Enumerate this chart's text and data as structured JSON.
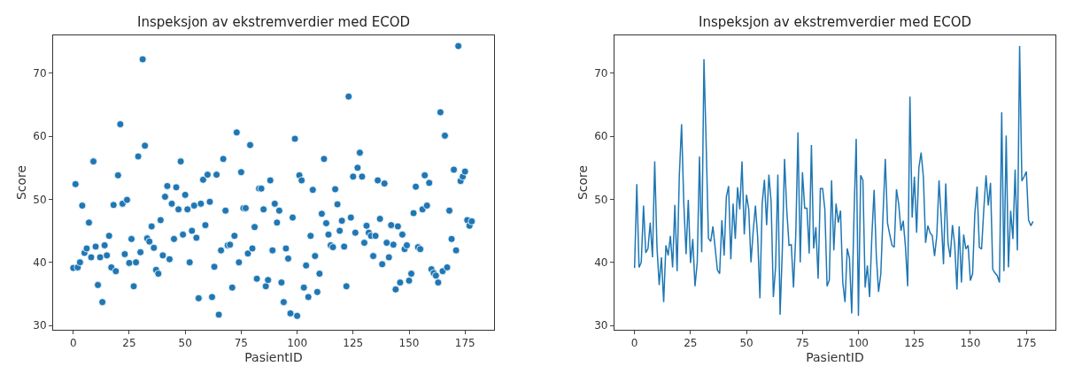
{
  "chart_data": [
    {
      "type": "scatter",
      "title": "Inspeksjon av ekstremverdier med ECOD",
      "xlabel": "PasientID",
      "ylabel": "Score",
      "marker": "circle",
      "xlim": [
        -9,
        188
      ],
      "ylim": [
        29.3,
        76
      ],
      "xticks": [
        0,
        25,
        50,
        75,
        100,
        125,
        150,
        175
      ],
      "yticks": [
        30,
        40,
        50,
        60,
        70
      ],
      "series": [
        {
          "color": "#1f77b4",
          "x": [
            0,
            1,
            2,
            3,
            4,
            5,
            6,
            7,
            8,
            9,
            10,
            11,
            12,
            13,
            14,
            15,
            16,
            17,
            18,
            19,
            20,
            21,
            22,
            23,
            24,
            25,
            26,
            27,
            28,
            29,
            30,
            31,
            32,
            33,
            34,
            35,
            36,
            37,
            38,
            39,
            40,
            41,
            42,
            43,
            44,
            45,
            46,
            47,
            48,
            49,
            50,
            51,
            52,
            53,
            54,
            55,
            56,
            57,
            58,
            59,
            60,
            61,
            62,
            63,
            64,
            65,
            66,
            67,
            68,
            69,
            70,
            71,
            72,
            73,
            74,
            75,
            76,
            77,
            78,
            79,
            80,
            81,
            82,
            83,
            84,
            85,
            86,
            87,
            88,
            89,
            90,
            91,
            92,
            93,
            94,
            95,
            96,
            97,
            98,
            99,
            100,
            101,
            102,
            103,
            104,
            105,
            106,
            107,
            108,
            109,
            110,
            111,
            112,
            113,
            114,
            115,
            116,
            117,
            118,
            119,
            120,
            121,
            122,
            123,
            124,
            125,
            126,
            127,
            128,
            129,
            130,
            131,
            132,
            133,
            134,
            135,
            136,
            137,
            138,
            139,
            140,
            141,
            142,
            143,
            144,
            145,
            146,
            147,
            148,
            149,
            150,
            151,
            152,
            153,
            154,
            155,
            156,
            157,
            158,
            159,
            160,
            161,
            162,
            163,
            164,
            165,
            166,
            167,
            168,
            169,
            170,
            171,
            172,
            173,
            174,
            175,
            176,
            177,
            178
          ],
          "values": [
            39.1,
            52.4,
            39.2,
            40.0,
            49.0,
            41.5,
            42.2,
            46.3,
            40.8,
            56.0,
            42.5,
            36.4,
            40.8,
            33.7,
            42.7,
            41.1,
            44.2,
            39.2,
            49.1,
            38.6,
            53.8,
            61.9,
            49.3,
            41.3,
            49.9,
            39.9,
            43.7,
            36.2,
            40.0,
            56.8,
            41.6,
            72.2,
            58.5,
            43.8,
            43.3,
            45.7,
            42.3,
            38.8,
            38.2,
            46.7,
            41.1,
            50.4,
            52.1,
            40.5,
            49.3,
            43.7,
            51.9,
            48.4,
            56.0,
            44.4,
            50.7,
            48.4,
            40.0,
            45.0,
            49.0,
            43.9,
            34.3,
            49.3,
            53.1,
            45.9,
            53.9,
            49.6,
            34.5,
            39.3,
            53.9,
            31.7,
            41.9,
            56.4,
            48.2,
            42.7,
            42.8,
            36.0,
            44.2,
            60.6,
            40.0,
            54.3,
            48.6,
            48.6,
            41.4,
            58.6,
            42.2,
            45.6,
            37.4,
            51.7,
            51.7,
            48.4,
            36.2,
            37.2,
            53.0,
            41.9,
            49.3,
            46.3,
            48.2,
            36.8,
            33.7,
            42.2,
            40.6,
            31.9,
            47.1,
            59.6,
            31.5,
            53.8,
            53.0,
            36.0,
            39.5,
            34.5,
            44.2,
            51.5,
            41.0,
            35.3,
            38.2,
            47.7,
            56.4,
            46.2,
            44.4,
            42.7,
            42.4,
            51.6,
            49.2,
            45.0,
            46.6,
            42.5,
            36.2,
            66.3,
            47.1,
            53.6,
            44.7,
            55.0,
            57.4,
            53.6,
            43.1,
            45.8,
            44.7,
            44.2,
            41.0,
            44.2,
            53.0,
            46.9,
            39.7,
            52.5,
            43.1,
            40.8,
            45.9,
            42.8,
            35.7,
            45.7,
            36.8,
            44.4,
            42.1,
            42.7,
            37.1,
            38.2,
            47.8,
            52.0,
            42.4,
            42.1,
            48.4,
            53.8,
            49.0,
            52.6,
            38.9,
            38.3,
            37.9,
            36.8,
            63.8,
            38.6,
            60.1,
            39.2,
            48.2,
            43.7,
            54.7,
            41.9,
            74.3,
            52.9,
            53.6,
            54.4,
            46.7,
            45.8,
            46.5
          ]
        }
      ]
    },
    {
      "type": "line",
      "title": "Inspeksjon av ekstremverdier med ECOD",
      "xlabel": "PasientID",
      "ylabel": "Score",
      "marker": "none",
      "line_style": "solid",
      "xlim": [
        -9,
        188
      ],
      "ylim": [
        29.3,
        76
      ],
      "xticks": [
        0,
        25,
        50,
        75,
        100,
        125,
        150,
        175
      ],
      "yticks": [
        30,
        40,
        50,
        60,
        70
      ],
      "series": [
        {
          "color": "#1f77b4",
          "x": [
            0,
            1,
            2,
            3,
            4,
            5,
            6,
            7,
            8,
            9,
            10,
            11,
            12,
            13,
            14,
            15,
            16,
            17,
            18,
            19,
            20,
            21,
            22,
            23,
            24,
            25,
            26,
            27,
            28,
            29,
            30,
            31,
            32,
            33,
            34,
            35,
            36,
            37,
            38,
            39,
            40,
            41,
            42,
            43,
            44,
            45,
            46,
            47,
            48,
            49,
            50,
            51,
            52,
            53,
            54,
            55,
            56,
            57,
            58,
            59,
            60,
            61,
            62,
            63,
            64,
            65,
            66,
            67,
            68,
            69,
            70,
            71,
            72,
            73,
            74,
            75,
            76,
            77,
            78,
            79,
            80,
            81,
            82,
            83,
            84,
            85,
            86,
            87,
            88,
            89,
            90,
            91,
            92,
            93,
            94,
            95,
            96,
            97,
            98,
            99,
            100,
            101,
            102,
            103,
            104,
            105,
            106,
            107,
            108,
            109,
            110,
            111,
            112,
            113,
            114,
            115,
            116,
            117,
            118,
            119,
            120,
            121,
            122,
            123,
            124,
            125,
            126,
            127,
            128,
            129,
            130,
            131,
            132,
            133,
            134,
            135,
            136,
            137,
            138,
            139,
            140,
            141,
            142,
            143,
            144,
            145,
            146,
            147,
            148,
            149,
            150,
            151,
            152,
            153,
            154,
            155,
            156,
            157,
            158,
            159,
            160,
            161,
            162,
            163,
            164,
            165,
            166,
            167,
            168,
            169,
            170,
            171,
            172,
            173,
            174,
            175,
            176,
            177,
            178
          ],
          "values": [
            39.1,
            52.4,
            39.2,
            40.0,
            49.0,
            41.5,
            42.2,
            46.3,
            40.8,
            56.0,
            42.5,
            36.4,
            40.8,
            33.7,
            42.7,
            41.1,
            44.2,
            39.2,
            49.1,
            38.6,
            53.8,
            61.9,
            49.3,
            41.3,
            49.9,
            39.9,
            43.7,
            36.2,
            40.0,
            56.8,
            41.6,
            72.2,
            58.5,
            43.8,
            43.3,
            45.7,
            42.3,
            38.8,
            38.2,
            46.7,
            41.1,
            50.4,
            52.1,
            40.5,
            49.3,
            43.7,
            51.9,
            48.4,
            56.0,
            44.4,
            50.7,
            48.4,
            40.0,
            45.0,
            49.0,
            43.9,
            34.3,
            49.3,
            53.1,
            45.9,
            53.9,
            49.6,
            34.5,
            39.3,
            53.9,
            31.7,
            41.9,
            56.4,
            48.2,
            42.7,
            42.8,
            36.0,
            44.2,
            60.6,
            40.0,
            54.3,
            48.6,
            48.6,
            41.4,
            58.6,
            42.2,
            45.6,
            37.4,
            51.7,
            51.7,
            48.4,
            36.2,
            37.2,
            53.0,
            41.9,
            49.3,
            46.3,
            48.2,
            36.8,
            33.7,
            42.2,
            40.6,
            31.9,
            47.1,
            59.6,
            31.5,
            53.8,
            53.0,
            36.0,
            39.5,
            34.5,
            44.2,
            51.5,
            41.0,
            35.3,
            38.2,
            47.7,
            56.4,
            46.2,
            44.4,
            42.7,
            42.4,
            51.6,
            49.2,
            45.0,
            46.6,
            42.5,
            36.2,
            66.3,
            47.1,
            53.6,
            44.7,
            55.0,
            57.4,
            53.6,
            43.1,
            45.8,
            44.7,
            44.2,
            41.0,
            44.2,
            53.0,
            46.9,
            39.7,
            52.5,
            43.1,
            40.8,
            45.9,
            42.8,
            35.7,
            45.7,
            36.8,
            44.4,
            42.1,
            42.7,
            37.1,
            38.2,
            47.8,
            52.0,
            42.4,
            42.1,
            48.4,
            53.8,
            49.0,
            52.6,
            38.9,
            38.3,
            37.9,
            36.8,
            63.8,
            38.6,
            60.1,
            39.2,
            48.2,
            43.7,
            54.7,
            41.9,
            74.3,
            52.9,
            53.6,
            54.4,
            46.7,
            45.8,
            46.5
          ]
        }
      ]
    }
  ]
}
